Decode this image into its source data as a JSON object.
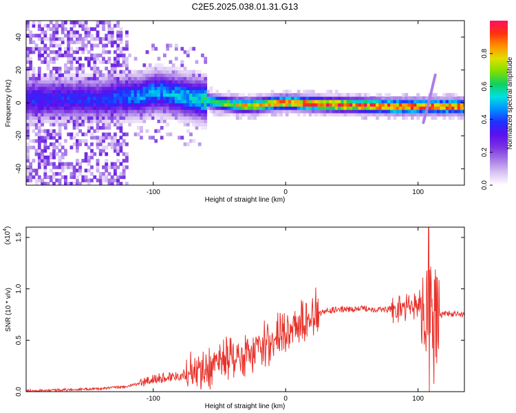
{
  "title": "C2E5.2025.038.01.31.G13",
  "colors": {
    "snr_line": "#e8312a",
    "spectro_ridge": "#e8312a",
    "axis": "#000000"
  },
  "chart_data": [
    {
      "type": "heatmap",
      "name": "spectrogram",
      "xlabel": "Height of straight line (km)",
      "ylabel": "Frequency (Hz)",
      "xlim": [
        -196,
        135
      ],
      "ylim": [
        -50,
        50
      ],
      "x_ticks": [
        -100,
        0,
        100
      ],
      "x_tick_labels": [
        "-100",
        "0",
        "100"
      ],
      "y_ticks": [
        -40,
        -20,
        0,
        20,
        40
      ],
      "y_tick_labels": [
        "-40",
        "-20",
        "0",
        "20",
        "40"
      ],
      "grid": false,
      "colorbar": {
        "label": "Normalized spectral amplitude",
        "range": [
          0.0,
          1.0
        ],
        "ticks": [
          0.0,
          0.2,
          0.4,
          0.6,
          0.8
        ],
        "tick_labels": [
          "0.0",
          "0.2",
          "0.4",
          "0.6",
          "0.8"
        ],
        "colormap": [
          "#ffffff",
          "#d9c3f3",
          "#a67be6",
          "#7a33e0",
          "#5a10ee",
          "#2030ff",
          "#0090ff",
          "#00e0e0",
          "#10d060",
          "#80e000",
          "#e0e000",
          "#ff9000",
          "#ff3010",
          "#ff1060"
        ]
      },
      "ridge": [
        {
          "x": -140,
          "f": 1.5,
          "a": 0.38
        },
        {
          "x": -130,
          "f": 2.5,
          "a": 0.42
        },
        {
          "x": -120,
          "f": 3.0,
          "a": 0.45
        },
        {
          "x": -110,
          "f": 3.5,
          "a": 0.48
        },
        {
          "x": -100,
          "f": 6.0,
          "a": 0.5
        },
        {
          "x": -90,
          "f": 5.0,
          "a": 0.5
        },
        {
          "x": -80,
          "f": 3.5,
          "a": 0.52
        },
        {
          "x": -70,
          "f": 2.0,
          "a": 0.55
        },
        {
          "x": -60,
          "f": 0.5,
          "a": 0.62
        },
        {
          "x": -50,
          "f": -1.0,
          "a": 0.7
        },
        {
          "x": -40,
          "f": -2.0,
          "a": 0.78
        },
        {
          "x": -30,
          "f": -2.5,
          "a": 0.82
        },
        {
          "x": -20,
          "f": -2.0,
          "a": 0.85
        },
        {
          "x": -10,
          "f": -1.0,
          "a": 0.88
        },
        {
          "x": 0,
          "f": -0.5,
          "a": 0.92
        },
        {
          "x": 20,
          "f": -1.5,
          "a": 0.95
        },
        {
          "x": 40,
          "f": -2.0,
          "a": 0.96
        },
        {
          "x": 60,
          "f": -2.5,
          "a": 0.96
        },
        {
          "x": 80,
          "f": -3.0,
          "a": 0.97
        },
        {
          "x": 100,
          "f": -3.0,
          "a": 0.97
        },
        {
          "x": 120,
          "f": -3.0,
          "a": 0.96
        },
        {
          "x": 135,
          "f": -3.0,
          "a": 0.95
        }
      ],
      "streak": [
        {
          "x": 104,
          "f": -12
        },
        {
          "x": 108,
          "f": 0
        },
        {
          "x": 113,
          "f": 17
        }
      ]
    },
    {
      "type": "line",
      "name": "snr",
      "xlabel": "Height of straight line (km)",
      "ylabel": "SNR (10 * v/v)",
      "y_multiplier_label": "(x10",
      "y_multiplier_exp": "4",
      "xlim": [
        -196,
        135
      ],
      "ylim": [
        0,
        1.6
      ],
      "x_ticks": [
        -100,
        0,
        100
      ],
      "x_tick_labels": [
        "-100",
        "0",
        "100"
      ],
      "y_ticks": [
        0.0,
        0.5,
        1.0,
        1.5
      ],
      "y_tick_labels": [
        "0.0",
        "0.5",
        "1.0",
        "1.5"
      ],
      "grid": false,
      "series": [
        {
          "x": [
            -196,
            -180,
            -160,
            -140,
            -120,
            -110,
            -100,
            -90,
            -80,
            -70,
            -60,
            -50,
            -40,
            -30,
            -20,
            -10,
            0,
            10,
            20,
            30,
            40,
            50,
            60,
            70,
            80,
            90,
            100,
            105,
            108,
            110,
            112,
            115,
            120,
            135
          ],
          "values": [
            0.01,
            0.015,
            0.02,
            0.03,
            0.05,
            0.08,
            0.12,
            0.14,
            0.16,
            0.18,
            0.2,
            0.25,
            0.28,
            0.32,
            0.38,
            0.45,
            0.52,
            0.62,
            0.72,
            0.78,
            0.8,
            0.8,
            0.81,
            0.8,
            0.8,
            0.82,
            0.84,
            0.86,
            0.85,
            0.7,
            0.6,
            0.74,
            0.76,
            0.75
          ],
          "max_spike": {
            "x": 108,
            "y": 1.62
          },
          "min_dip": {
            "x": 108,
            "y": 0.0
          }
        }
      ]
    }
  ]
}
